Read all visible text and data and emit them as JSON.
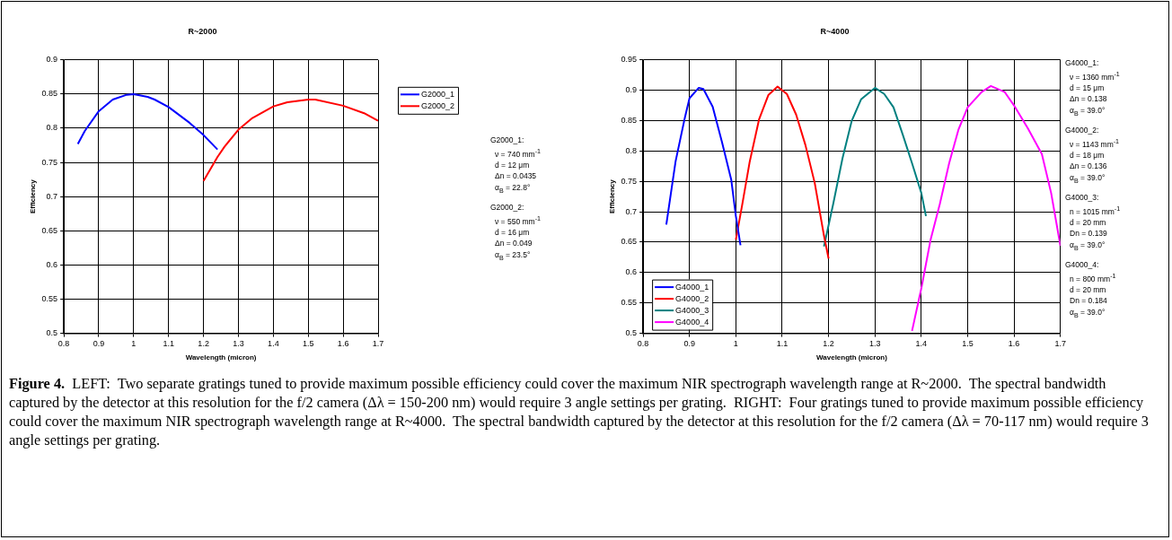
{
  "chart_data": [
    {
      "type": "line",
      "title": "R~2000",
      "xlabel": "Wavelength (micron)",
      "ylabel": "Efficiency",
      "xlim": [
        0.8,
        1.7
      ],
      "xticks": [
        0.8,
        0.9,
        1,
        1.1,
        1.2,
        1.3,
        1.4,
        1.5,
        1.6,
        1.7
      ],
      "ylim": [
        0.5,
        0.9
      ],
      "yticks": [
        0.5,
        0.55,
        0.6,
        0.65,
        0.7,
        0.75,
        0.8,
        0.85,
        0.9
      ],
      "grid": true,
      "legend": "right",
      "series": [
        {
          "name": "G2000_1",
          "color": "#0000ff",
          "x": [
            0.84,
            0.86,
            0.9,
            0.94,
            0.98,
            1.0,
            1.04,
            1.06,
            1.1,
            1.16,
            1.2,
            1.24
          ],
          "values": [
            0.777,
            0.796,
            0.825,
            0.842,
            0.849,
            0.85,
            0.846,
            0.842,
            0.831,
            0.808,
            0.79,
            0.769
          ]
        },
        {
          "name": "G2000_2",
          "color": "#ff0000",
          "x": [
            1.2,
            1.24,
            1.26,
            1.3,
            1.34,
            1.4,
            1.44,
            1.5,
            1.52,
            1.6,
            1.66,
            1.7
          ],
          "values": [
            0.723,
            0.758,
            0.773,
            0.798,
            0.815,
            0.832,
            0.838,
            0.842,
            0.842,
            0.833,
            0.822,
            0.811
          ]
        }
      ],
      "annotations": [
        "G2000_1:",
        "ν = 740 mm$^{-1}$",
        "d = 12 μm",
        "Δn = 0.0435",
        "α$_{B}$ = 22.8°",
        "G2000_2:",
        "ν = 550 mm$^{-1}$",
        "d = 16 μm",
        "Δn = 0.049",
        "α$_{B}$ = 23.5°"
      ]
    },
    {
      "type": "line",
      "title": "R~4000",
      "xlabel": "Wavelength (micron)",
      "ylabel": "Efficiency",
      "xlim": [
        0.8,
        1.7
      ],
      "xticks": [
        0.8,
        0.9,
        1,
        1.1,
        1.2,
        1.3,
        1.4,
        1.5,
        1.6,
        1.7
      ],
      "ylim": [
        0.5,
        0.95
      ],
      "yticks": [
        0.5,
        0.55,
        0.6,
        0.65,
        0.7,
        0.75,
        0.8,
        0.85,
        0.9,
        0.95
      ],
      "grid": true,
      "legend": "bottom left",
      "series": [
        {
          "name": "G4000_1",
          "color": "#0000ff",
          "x": [
            0.85,
            0.87,
            0.89,
            0.9,
            0.92,
            0.93,
            0.95,
            0.97,
            0.99,
            1.0,
            1.01
          ],
          "values": [
            0.679,
            0.783,
            0.855,
            0.887,
            0.904,
            0.902,
            0.873,
            0.815,
            0.753,
            0.693,
            0.645
          ]
        },
        {
          "name": "G4000_2",
          "color": "#ff0000",
          "x": [
            1.0,
            1.014,
            1.03,
            1.05,
            1.07,
            1.09,
            1.11,
            1.13,
            1.15,
            1.17,
            1.19,
            1.2
          ],
          "values": [
            0.654,
            0.713,
            0.783,
            0.852,
            0.892,
            0.906,
            0.894,
            0.86,
            0.81,
            0.748,
            0.661,
            0.623
          ]
        },
        {
          "name": "G4000_3",
          "color": "#008080",
          "x": [
            1.19,
            1.21,
            1.23,
            1.25,
            1.27,
            1.3,
            1.32,
            1.34,
            1.36,
            1.38,
            1.4,
            1.41
          ],
          "values": [
            0.643,
            0.713,
            0.788,
            0.85,
            0.885,
            0.904,
            0.894,
            0.872,
            0.827,
            0.78,
            0.731,
            0.693
          ]
        },
        {
          "name": "G4000_4",
          "color": "#ff00ff",
          "x": [
            1.38,
            1.4,
            1.42,
            1.44,
            1.46,
            1.48,
            1.5,
            1.53,
            1.55,
            1.58,
            1.6,
            1.63,
            1.66,
            1.68,
            1.7
          ],
          "values": [
            0.504,
            0.574,
            0.654,
            0.713,
            0.78,
            0.835,
            0.872,
            0.897,
            0.907,
            0.897,
            0.875,
            0.837,
            0.795,
            0.731,
            0.644
          ]
        }
      ],
      "annotations": [
        "G4000_1:",
        "ν = 1360 mm$^{-1}$",
        "d = 15 μm",
        "Δn = 0.138",
        "α$_{B}$ = 39.0°",
        "G4000_2:",
        "ν = 1143 mm$^{-1}$",
        "d = 18 μm",
        "Δn = 0.136",
        "α$_{B}$ = 39.0°",
        "G4000_3:",
        "n = 1015 mm$^{-1}$",
        "d = 20 mm",
        "Dn = 0.139",
        "α$_{B}$ = 39.0°",
        "G4000_4:",
        "n = 800 mm$^{-1}$",
        "d = 20 mm",
        "Dn = 0.184",
        "α$_{B}$ = 39.0°"
      ]
    },
    {
      "type": "other",
      "annotations": [
        "Figure 4.",
        "LEFT:  Two separate gratings tuned to provide maximum possible efficiency could cover the maximum NIR spectrograph wavelength range at R~2000.  The spectral bandwidth captured by the detector at this resolution for the f/2 camera (Δλ = 150-200 nm) would require 3 angle settings per grating.  RIGHT:  Four gratings tuned to provide maximum possible efficiency could cover the maximum NIR spectrograph wavelength range at R~4000.  The spectral bandwidth captured by the detector at this resolution for the f/2 camera (Δλ = 70-117 nm) would require 3 angle settings per grating."
      ]
    }
  ]
}
